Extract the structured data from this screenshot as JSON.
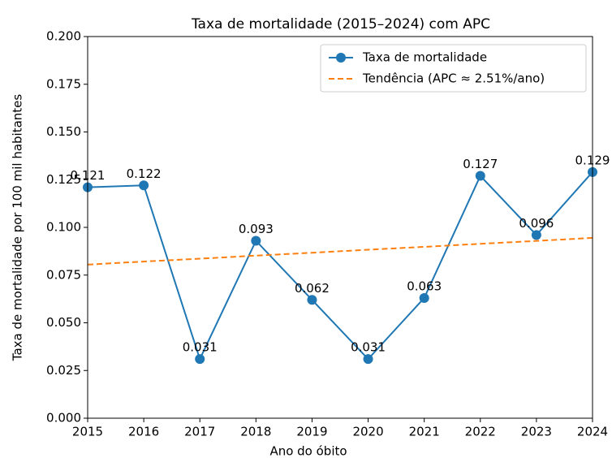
{
  "chart_data": {
    "type": "line",
    "title": "Taxa de mortalidade (2015–2024) com APC",
    "xlabel": "Ano do óbito",
    "ylabel": "Taxa de mortalidade por 100 mil habitantes",
    "x": [
      2015,
      2016,
      2017,
      2018,
      2019,
      2020,
      2021,
      2022,
      2023,
      2024
    ],
    "series": [
      {
        "name": "Taxa de mortalidade",
        "color": "#1f77b4",
        "marker": true,
        "value_labels_shown": true,
        "values": [
          0.121,
          0.122,
          0.031,
          0.093,
          0.062,
          0.031,
          0.063,
          0.127,
          0.096,
          0.129
        ]
      },
      {
        "name": "Tendência (APC ≈ 2.51%/ano)",
        "color": "#ff7f0e",
        "dashed": true,
        "values": [
          0.0805,
          0.0821,
          0.0836,
          0.0852,
          0.0867,
          0.0883,
          0.0898,
          0.0914,
          0.0929,
          0.0945
        ]
      }
    ],
    "xlim": [
      2015,
      2024
    ],
    "xticks": [
      2015,
      2016,
      2017,
      2018,
      2019,
      2020,
      2021,
      2022,
      2023,
      2024
    ],
    "ylim": [
      0,
      0.2
    ],
    "yticks": [
      {
        "value": 0,
        "label": "0.000"
      },
      0.025,
      {
        "value": 0.05,
        "label": "0.050"
      },
      0.075,
      {
        "value": 0.1,
        "label": "0.100"
      },
      0.125,
      {
        "value": 0.15,
        "label": "0.150"
      },
      0.175,
      {
        "value": 0.2,
        "label": "0.200"
      }
    ],
    "grid": false,
    "legend": "upper right"
  }
}
